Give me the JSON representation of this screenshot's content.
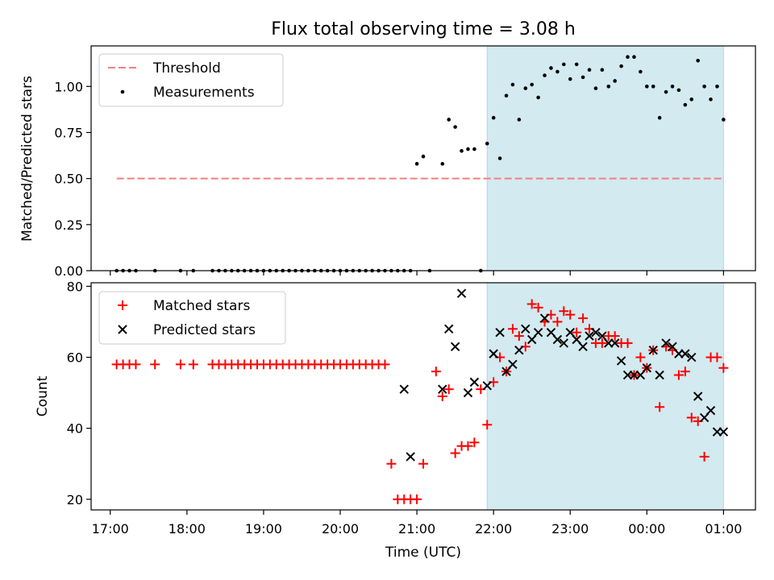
{
  "chart_data": [
    {
      "type": "scatter",
      "title": "Flux total observing time = 3.08 h",
      "ylabel": "Matched/Predicted stars",
      "xlabel": "",
      "ylim": [
        0,
        1.22
      ],
      "x_range": [
        "16:45",
        "01:25"
      ],
      "y_ticks": [
        "0.00",
        "0.25",
        "0.50",
        "0.75",
        "1.00"
      ],
      "legend_placement": "top-left",
      "highlight_span": {
        "start": "21:55",
        "end": "01:00",
        "color": "#d3eaf0"
      },
      "threshold": {
        "name": "Threshold",
        "value": 0.5,
        "x_start": "17:05",
        "x_end": "01:00",
        "color": "#f08080"
      },
      "series": [
        {
          "name": "Measurements",
          "color": "#000000",
          "x": [
            "17:05",
            "17:10",
            "17:15",
            "17:20",
            "17:35",
            "17:55",
            "18:05",
            "18:20",
            "18:25",
            "18:30",
            "18:35",
            "18:40",
            "18:45",
            "18:50",
            "18:55",
            "19:00",
            "19:05",
            "19:10",
            "19:15",
            "19:20",
            "19:25",
            "19:30",
            "19:35",
            "19:40",
            "19:45",
            "19:50",
            "19:55",
            "20:00",
            "20:05",
            "20:10",
            "20:15",
            "20:20",
            "20:25",
            "20:30",
            "20:35",
            "20:40",
            "20:45",
            "20:50",
            "20:55",
            "21:00",
            "21:05",
            "21:10",
            "21:20",
            "21:25",
            "21:30",
            "21:35",
            "21:40",
            "21:45",
            "21:50",
            "21:55",
            "22:00",
            "22:05",
            "22:10",
            "22:15",
            "22:20",
            "22:25",
            "22:30",
            "22:35",
            "22:40",
            "22:45",
            "22:50",
            "22:55",
            "23:00",
            "23:05",
            "23:10",
            "23:15",
            "23:20",
            "23:25",
            "23:30",
            "23:35",
            "23:40",
            "23:45",
            "23:50",
            "23:55",
            "00:00",
            "00:05",
            "00:10",
            "00:15",
            "00:20",
            "00:25",
            "00:30",
            "00:35",
            "00:40",
            "00:45",
            "00:50",
            "00:55",
            "01:00"
          ],
          "y": [
            0,
            0,
            0,
            0,
            0,
            0,
            0,
            0,
            0,
            0,
            0,
            0,
            0,
            0,
            0,
            0,
            0,
            0,
            0,
            0,
            0,
            0,
            0,
            0,
            0,
            0,
            0,
            0,
            0,
            0,
            0,
            0,
            0,
            0,
            0,
            0,
            0,
            0,
            0,
            0.58,
            0.62,
            0,
            0.58,
            0.82,
            0.78,
            0.65,
            0.66,
            0.66,
            0,
            0.69,
            0.83,
            0.61,
            0.95,
            1.01,
            0.82,
            0.99,
            1.01,
            0.94,
            1.06,
            1.1,
            1.08,
            1.12,
            1.04,
            1.12,
            1.05,
            1.09,
            0.99,
            1.09,
            1.0,
            1.03,
            1.11,
            1.16,
            1.16,
            1.08,
            1.0,
            1.0,
            0.83,
            0.97,
            1.0,
            0.98,
            0.9,
            0.93,
            1.14,
            1.0,
            0.93,
            1.0,
            0.82
          ]
        }
      ]
    },
    {
      "type": "scatter",
      "title": "",
      "ylabel": "Count",
      "xlabel": "Time (UTC)",
      "ylim": [
        17,
        81
      ],
      "x_range": [
        "16:45",
        "01:25"
      ],
      "y_ticks": [
        "20",
        "40",
        "60",
        "80"
      ],
      "x_ticks": [
        "17:00",
        "18:00",
        "19:00",
        "20:00",
        "21:00",
        "22:00",
        "23:00",
        "00:00",
        "01:00"
      ],
      "legend_placement": "top-left",
      "highlight_span": {
        "start": "21:55",
        "end": "01:00",
        "color": "#d3eaf0"
      },
      "series": [
        {
          "name": "Matched stars",
          "marker": "+",
          "color": "#ff0000",
          "x": [
            "17:05",
            "17:10",
            "17:15",
            "17:20",
            "17:35",
            "17:55",
            "18:05",
            "18:20",
            "18:25",
            "18:30",
            "18:35",
            "18:40",
            "18:45",
            "18:50",
            "18:55",
            "19:00",
            "19:05",
            "19:10",
            "19:15",
            "19:20",
            "19:25",
            "19:30",
            "19:35",
            "19:40",
            "19:45",
            "19:50",
            "19:55",
            "20:00",
            "20:05",
            "20:10",
            "20:15",
            "20:20",
            "20:25",
            "20:30",
            "20:35",
            "20:40",
            "20:45",
            "20:50",
            "20:55",
            "21:00",
            "21:05",
            "21:15",
            "21:20",
            "21:25",
            "21:30",
            "21:35",
            "21:40",
            "21:45",
            "21:50",
            "21:55",
            "22:00",
            "22:05",
            "22:10",
            "22:15",
            "22:20",
            "22:25",
            "22:30",
            "22:35",
            "22:40",
            "22:45",
            "22:50",
            "22:55",
            "23:00",
            "23:05",
            "23:10",
            "23:15",
            "23:20",
            "23:25",
            "23:30",
            "23:35",
            "23:40",
            "23:45",
            "23:50",
            "23:55",
            "00:00",
            "00:05",
            "00:10",
            "00:15",
            "00:20",
            "00:25",
            "00:30",
            "00:35",
            "00:40",
            "00:45",
            "00:50",
            "00:55",
            "01:00"
          ],
          "y": [
            58,
            58,
            58,
            58,
            58,
            58,
            58,
            58,
            58,
            58,
            58,
            58,
            58,
            58,
            58,
            58,
            58,
            58,
            58,
            58,
            58,
            58,
            58,
            58,
            58,
            58,
            58,
            58,
            58,
            58,
            58,
            58,
            58,
            58,
            58,
            30,
            20,
            20,
            20,
            20,
            30,
            56,
            49,
            51,
            33,
            35,
            35,
            36,
            51,
            41,
            53,
            60,
            56,
            68,
            66,
            63,
            75,
            74,
            70,
            72,
            70,
            73,
            72,
            67,
            71,
            68,
            64,
            64,
            66,
            66,
            64,
            64,
            55,
            60,
            57,
            62,
            46,
            63,
            62,
            55,
            56,
            43,
            42,
            32,
            60,
            60,
            57
          ]
        },
        {
          "name": "Predicted stars",
          "marker": "x",
          "color": "#000000",
          "x": [
            "20:50",
            "20:55",
            "21:20",
            "21:25",
            "21:30",
            "21:35",
            "21:40",
            "21:45",
            "21:55",
            "22:00",
            "22:05",
            "22:10",
            "22:15",
            "22:20",
            "22:25",
            "22:30",
            "22:35",
            "22:40",
            "22:45",
            "22:50",
            "22:55",
            "23:00",
            "23:05",
            "23:10",
            "23:15",
            "23:20",
            "23:25",
            "23:30",
            "23:35",
            "23:40",
            "23:45",
            "23:50",
            "23:55",
            "00:00",
            "00:05",
            "00:10",
            "00:15",
            "00:20",
            "00:25",
            "00:30",
            "00:35",
            "00:40",
            "00:45",
            "00:50",
            "00:55",
            "01:00"
          ],
          "y": [
            51,
            32,
            51,
            68,
            63,
            78,
            50,
            53,
            52,
            61,
            67,
            56,
            58,
            62,
            68,
            65,
            67,
            71,
            67,
            65,
            64,
            67,
            65,
            63,
            66,
            67,
            66,
            64,
            64,
            59,
            55,
            55,
            55,
            57,
            62,
            55,
            64,
            63,
            61,
            61,
            60,
            49,
            43,
            45,
            39,
            39
          ]
        }
      ]
    }
  ]
}
